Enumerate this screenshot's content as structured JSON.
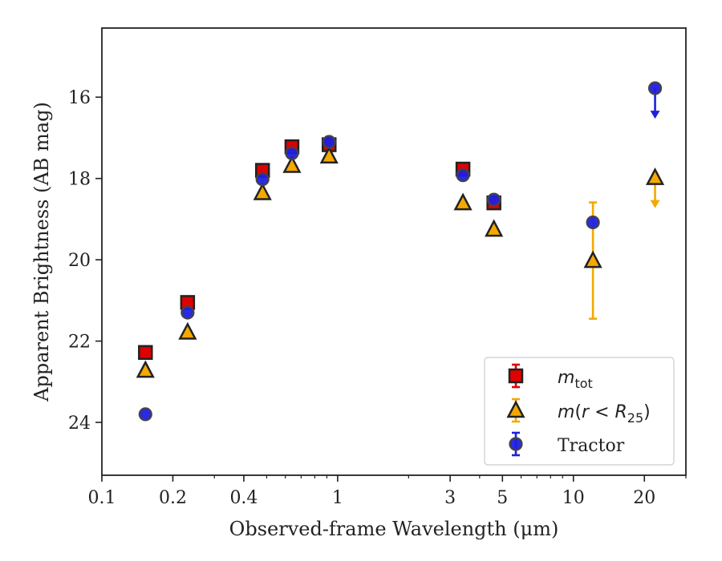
{
  "chart_data": {
    "type": "scatter",
    "xlabel": "Observed-frame Wavelength (μm)",
    "ylabel": "Apparent Brightness (AB mag)",
    "xscale": "log",
    "xlim": [
      0.1,
      30
    ],
    "ylim": [
      25.3,
      14.3
    ],
    "y_inverted": true,
    "x_ticks": [
      0.1,
      0.2,
      0.4,
      1,
      3,
      5,
      10,
      20
    ],
    "x_tick_labels": [
      "0.1",
      "0.2",
      "0.4",
      "1",
      "3",
      "5",
      "10",
      "20"
    ],
    "y_ticks": [
      16,
      18,
      20,
      22,
      24
    ],
    "y_tick_labels": [
      "16",
      "18",
      "20",
      "22",
      "24"
    ],
    "legend_position": "lower-right",
    "series": [
      {
        "name": "m_tot",
        "marker": "square",
        "color": "#e00000",
        "points": [
          {
            "x": 0.153,
            "y": 22.28,
            "err": 0.06
          },
          {
            "x": 0.231,
            "y": 21.05,
            "err": 0.06
          },
          {
            "x": 0.48,
            "y": 17.8,
            "err": 0.05
          },
          {
            "x": 0.64,
            "y": 17.22,
            "err": 0.05
          },
          {
            "x": 0.92,
            "y": 17.17,
            "err": 0.05
          },
          {
            "x": 3.4,
            "y": 17.77,
            "err": 0.05
          },
          {
            "x": 4.6,
            "y": 18.6,
            "err": 0.06
          }
        ]
      },
      {
        "name": "m(r < R25)",
        "marker": "triangle",
        "color": "#f5a800",
        "points": [
          {
            "x": 0.153,
            "y": 22.72
          },
          {
            "x": 0.231,
            "y": 21.78
          },
          {
            "x": 0.48,
            "y": 18.35
          },
          {
            "x": 0.64,
            "y": 17.68
          },
          {
            "x": 0.92,
            "y": 17.45
          },
          {
            "x": 3.4,
            "y": 18.6
          },
          {
            "x": 4.6,
            "y": 19.25
          },
          {
            "x": 12.1,
            "y": 20.02,
            "err_lo": 1.43,
            "err_hi": 1.43
          },
          {
            "x": 22.2,
            "y": 17.98,
            "upper_limit": true
          }
        ]
      },
      {
        "name": "Tractor",
        "marker": "circle",
        "color": "#1f1fe0",
        "points": [
          {
            "x": 0.153,
            "y": 23.8
          },
          {
            "x": 0.231,
            "y": 21.3
          },
          {
            "x": 0.48,
            "y": 18.02
          },
          {
            "x": 0.64,
            "y": 17.38
          },
          {
            "x": 0.92,
            "y": 17.1
          },
          {
            "x": 3.4,
            "y": 17.92
          },
          {
            "x": 4.6,
            "y": 18.52
          },
          {
            "x": 12.1,
            "y": 19.08
          },
          {
            "x": 22.2,
            "y": 15.78,
            "upper_limit": true
          }
        ]
      }
    ]
  }
}
